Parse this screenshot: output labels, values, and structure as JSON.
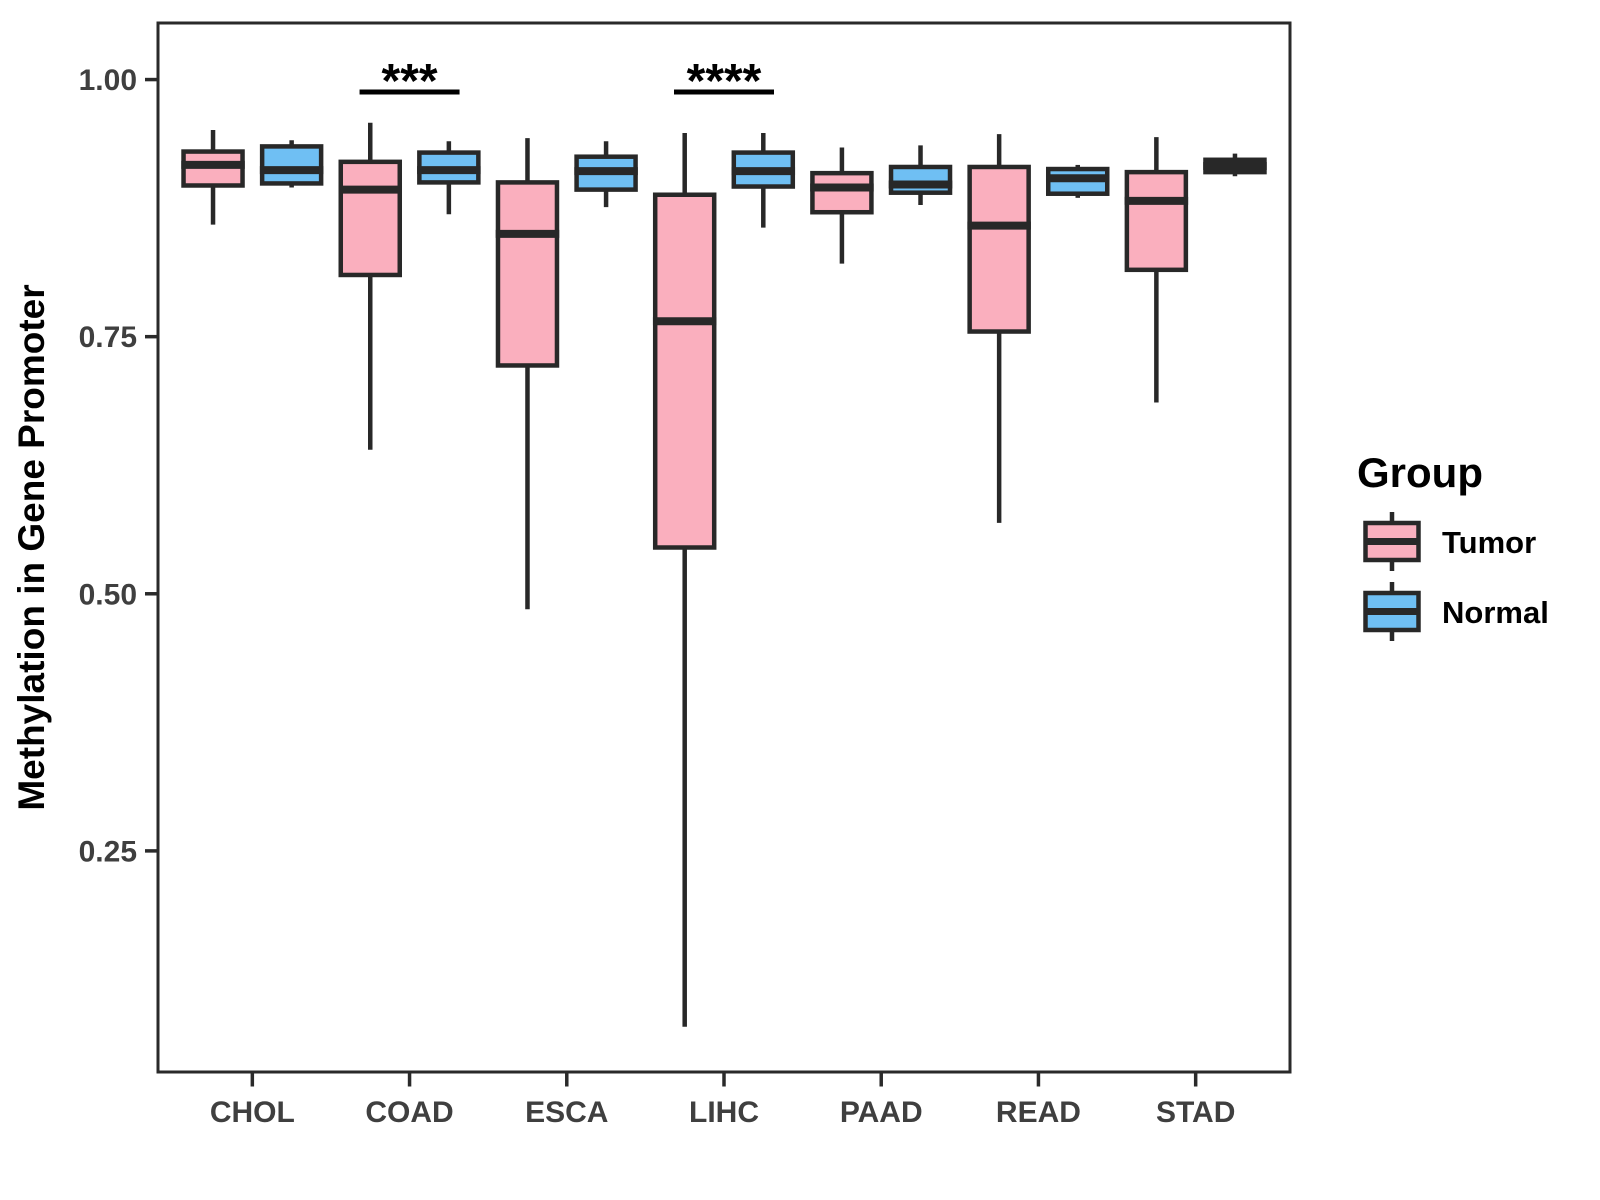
{
  "chart_data": {
    "type": "boxplot",
    "title": "",
    "xlabel": "",
    "ylabel": "Methylation in Gene Promoter",
    "grid": "off",
    "ylim": [
      0.035,
      1.055
    ],
    "yticks": [
      {
        "value": 1.0,
        "label": "1.00"
      },
      {
        "value": 0.75,
        "label": "0.75"
      },
      {
        "value": 0.5,
        "label": "0.50"
      },
      {
        "value": 0.25,
        "label": "0.25"
      }
    ],
    "categories": [
      "CHOL",
      "COAD",
      "ESCA",
      "LIHC",
      "PAAD",
      "READ",
      "STAD"
    ],
    "series": [
      {
        "name": "Tumor",
        "fill": "#FAAFBE",
        "stats": [
          {
            "whisker_low": 0.859,
            "q1": 0.897,
            "median": 0.917,
            "q3": 0.93,
            "whisker_high": 0.951
          },
          {
            "whisker_low": 0.64,
            "q1": 0.81,
            "median": 0.893,
            "q3": 0.92,
            "whisker_high": 0.958
          },
          {
            "whisker_low": 0.485,
            "q1": 0.722,
            "median": 0.85,
            "q3": 0.9,
            "whisker_high": 0.943
          },
          {
            "whisker_low": 0.079,
            "q1": 0.545,
            "median": 0.765,
            "q3": 0.888,
            "whisker_high": 0.948
          },
          {
            "whisker_low": 0.821,
            "q1": 0.871,
            "median": 0.895,
            "q3": 0.909,
            "whisker_high": 0.934
          },
          {
            "whisker_low": 0.569,
            "q1": 0.755,
            "median": 0.858,
            "q3": 0.915,
            "whisker_high": 0.947
          },
          {
            "whisker_low": 0.686,
            "q1": 0.815,
            "median": 0.882,
            "q3": 0.91,
            "whisker_high": 0.944
          }
        ]
      },
      {
        "name": "Normal",
        "fill": "#6FBFF3",
        "stats": [
          {
            "whisker_low": 0.895,
            "q1": 0.899,
            "median": 0.912,
            "q3": 0.935,
            "whisker_high": 0.941
          },
          {
            "whisker_low": 0.869,
            "q1": 0.9,
            "median": 0.912,
            "q3": 0.929,
            "whisker_high": 0.94
          },
          {
            "whisker_low": 0.876,
            "q1": 0.893,
            "median": 0.911,
            "q3": 0.925,
            "whisker_high": 0.94
          },
          {
            "whisker_low": 0.856,
            "q1": 0.896,
            "median": 0.911,
            "q3": 0.929,
            "whisker_high": 0.948
          },
          {
            "whisker_low": 0.878,
            "q1": 0.89,
            "median": 0.898,
            "q3": 0.915,
            "whisker_high": 0.936
          },
          {
            "whisker_low": 0.885,
            "q1": 0.889,
            "median": 0.904,
            "q3": 0.913,
            "whisker_high": 0.917
          },
          {
            "whisker_low": 0.906,
            "q1": 0.91,
            "median": 0.916,
            "q3": 0.922,
            "whisker_high": 0.928
          }
        ]
      }
    ],
    "significance": [
      {
        "category": "COAD",
        "text": "***"
      },
      {
        "category": "LIHC",
        "text": "****"
      }
    ],
    "legend": {
      "title": "Group",
      "position": "right"
    },
    "colors": {
      "box_border": "#282828",
      "median": "#282828",
      "whisker": "#282828",
      "panel_border": "#2A2A2A",
      "axis_text": "#3F3F3F",
      "title_text": "#000000",
      "annotation": "#000000",
      "background": "#FFFFFF"
    }
  }
}
